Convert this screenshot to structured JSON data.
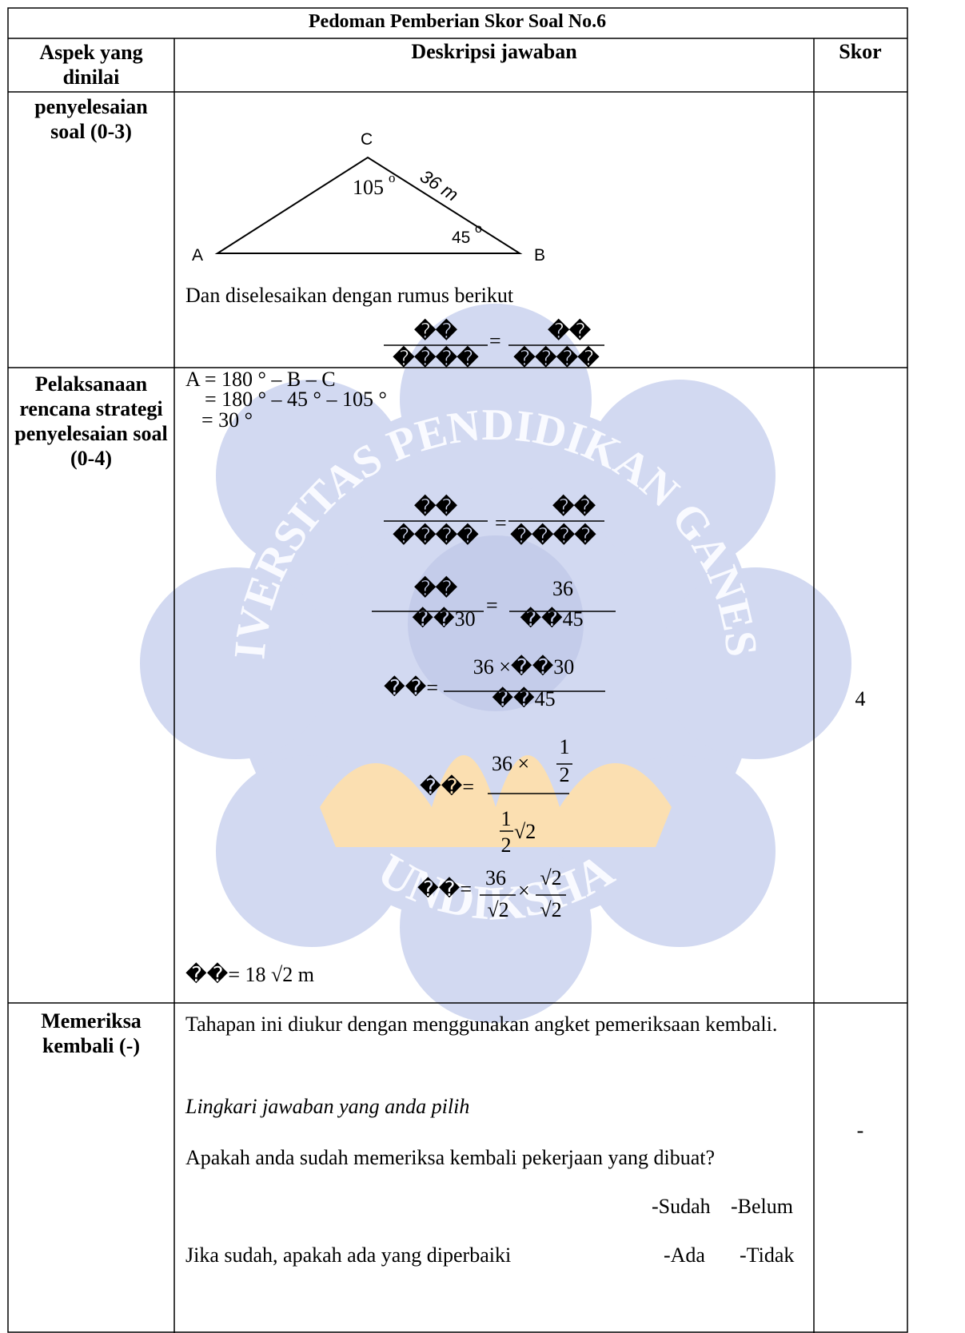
{
  "watermark": {
    "arc_text": "UNIVERSITAS PENDIDIKAN GANESHA",
    "bottom_text": "UNDIKSHA"
  },
  "table": {
    "title": "Pedoman Pemberian Skor Soal No.6",
    "headers": [
      "Aspek yang dinilai",
      "Deskripsi jawaban",
      "Skor"
    ],
    "rows": [
      {
        "aspect": "penyelesaian soal (0-3)",
        "diagram": {
          "vertex_c": "C",
          "vertex_a": "A",
          "vertex_b": "B",
          "angle_c": "105",
          "angle_c_unit": "o",
          "side_cb": "36 m",
          "angle_b": "45",
          "angle_b_unit": "o"
        },
        "text": "Dan diselesaikan dengan rumus berikut",
        "formula": {
          "left_num": "��",
          "left_den": "����",
          "eq": "=",
          "right_num": "��",
          "right_den": "����"
        }
      },
      {
        "aspect": "Pelaksanaan rencana strategi penyelesaian soal (0-4)",
        "lines": [
          "A = 180 ° – B – C",
          "= 180 ° – 45 ° – 105 °",
          "= 30 °"
        ],
        "step1": {
          "left_num": "��",
          "left_den": "����",
          "eq": "=",
          "right_num": "��",
          "right_den": "����"
        },
        "step2": {
          "left_num": "��",
          "left_den": "��30",
          "eq": "=",
          "right_num": "36",
          "right_den": "��45"
        },
        "step3": {
          "lhs": "��=",
          "num": "36 ×��30",
          "den": "��45"
        },
        "step4": {
          "lhs": "��=",
          "num": "36 ×",
          "num_frac_num": "1",
          "num_frac_den": "2",
          "den_frac_num": "1",
          "den_frac_den": "2",
          "den_root": "√2"
        },
        "step5": {
          "lhs": "��=",
          "left_num": "36",
          "left_den": "√2",
          "times": "×",
          "right_num": "√2",
          "right_den": "√2"
        },
        "result": "��= 18 √2 m",
        "score": "4"
      },
      {
        "aspect": "Memeriksa kembali (-)",
        "paragraph": "Tahapan ini diukur dengan menggunakan angket pemeriksaan kembali.",
        "instruction": "Lingkari jawaban yang anda pilih",
        "question1": "Apakah anda sudah memeriksa kembali pekerjaan yang dibuat?",
        "options1": [
          "-Sudah",
          "-Belum"
        ],
        "question2": "Jika sudah, apakah ada yang diperbaiki",
        "options2": [
          "-Ada",
          "-Tidak"
        ],
        "score": "-"
      }
    ]
  }
}
